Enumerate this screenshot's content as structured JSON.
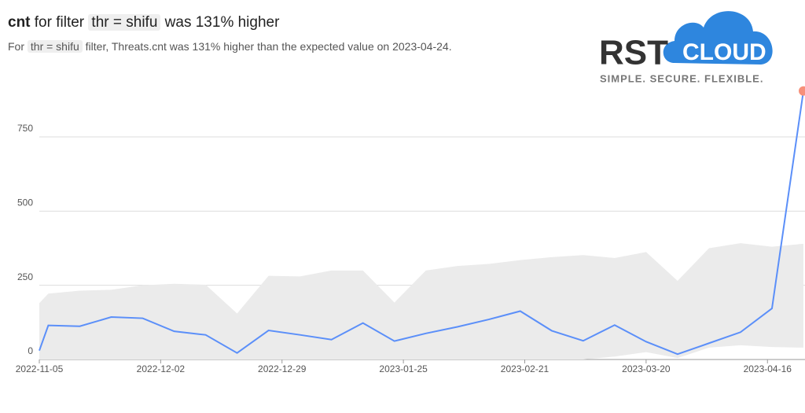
{
  "header": {
    "title": {
      "metric": "cnt",
      "pre": "for filter",
      "filter": "thr = shifu",
      "post": "was 131% higher"
    },
    "subtitle": {
      "pre": "For",
      "filter": "thr = shifu",
      "post": "filter, Threats.cnt was 131% higher than the expected value on 2023-04-24."
    }
  },
  "logo": {
    "brand": "RST",
    "cloud": "CLOUD",
    "tagline": "SIMPLE.  SECURE.  FLEXIBLE."
  },
  "chart_data": {
    "type": "line",
    "x": [
      "2022-11-05",
      "2022-11-07",
      "2022-11-14",
      "2022-11-21",
      "2022-11-28",
      "2022-12-05",
      "2022-12-12",
      "2022-12-19",
      "2022-12-26",
      "2023-01-02",
      "2023-01-09",
      "2023-01-16",
      "2023-01-23",
      "2023-01-30",
      "2023-02-06",
      "2023-02-13",
      "2023-02-20",
      "2023-02-27",
      "2023-03-06",
      "2023-03-13",
      "2023-03-20",
      "2023-03-27",
      "2023-04-03",
      "2023-04-10",
      "2023-04-17",
      "2023-04-24"
    ],
    "values": [
      30,
      115,
      112,
      143,
      139,
      95,
      83,
      22,
      98,
      83,
      67,
      123,
      62,
      88,
      110,
      135,
      163,
      97,
      63,
      116,
      60,
      18,
      55,
      92,
      172,
      905
    ],
    "band": {
      "lower": [
        0,
        0,
        0,
        0,
        0,
        0,
        0,
        0,
        0,
        0,
        0,
        0,
        0,
        0,
        0,
        0,
        0,
        0,
        0,
        10,
        25,
        5,
        40,
        48,
        42,
        40
      ],
      "upper": [
        190,
        222,
        232,
        235,
        250,
        255,
        252,
        155,
        282,
        280,
        300,
        300,
        192,
        300,
        315,
        322,
        335,
        345,
        352,
        342,
        362,
        265,
        375,
        392,
        380,
        390
      ]
    },
    "color": "#5b8ff9",
    "band_color": "#ebebeb",
    "highlight_color": "#f7907a",
    "xlim": [
      "2022-11-05",
      "2023-04-24"
    ],
    "xticks": [
      "2022-11-05",
      "2022-12-02",
      "2022-12-29",
      "2023-01-25",
      "2023-02-21",
      "2023-03-20",
      "2023-04-16"
    ],
    "ylim": [
      0,
      950
    ],
    "yticks": [
      0,
      250,
      500,
      750
    ],
    "grid": true
  }
}
